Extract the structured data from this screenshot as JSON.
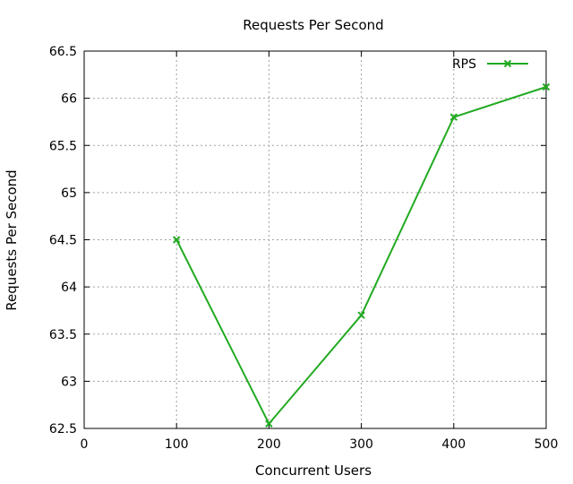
{
  "chart_data": {
    "type": "line",
    "title": "Requests Per Second",
    "xlabel": "Concurrent Users",
    "ylabel": "Requests Per Second",
    "xlim": [
      0,
      500
    ],
    "ylim": [
      62.5,
      66.5
    ],
    "x_ticks": [
      0,
      100,
      200,
      300,
      400,
      500
    ],
    "y_ticks": [
      62.5,
      63,
      63.5,
      64,
      64.5,
      65,
      65.5,
      66,
      66.5
    ],
    "x_tick_labels": [
      "0",
      "100",
      "200",
      "300",
      "400",
      "500"
    ],
    "y_tick_labels": [
      "62.5",
      "63",
      "63.5",
      "64",
      "64.5",
      "65",
      "65.5",
      "66",
      "66.5"
    ],
    "grid": true,
    "legend_position": "top-right",
    "series": [
      {
        "name": "RPS",
        "color": "#22aa22",
        "marker": "x",
        "x": [
          100,
          200,
          300,
          400,
          500
        ],
        "y": [
          64.5,
          62.55,
          63.7,
          65.8,
          66.12
        ]
      }
    ]
  }
}
